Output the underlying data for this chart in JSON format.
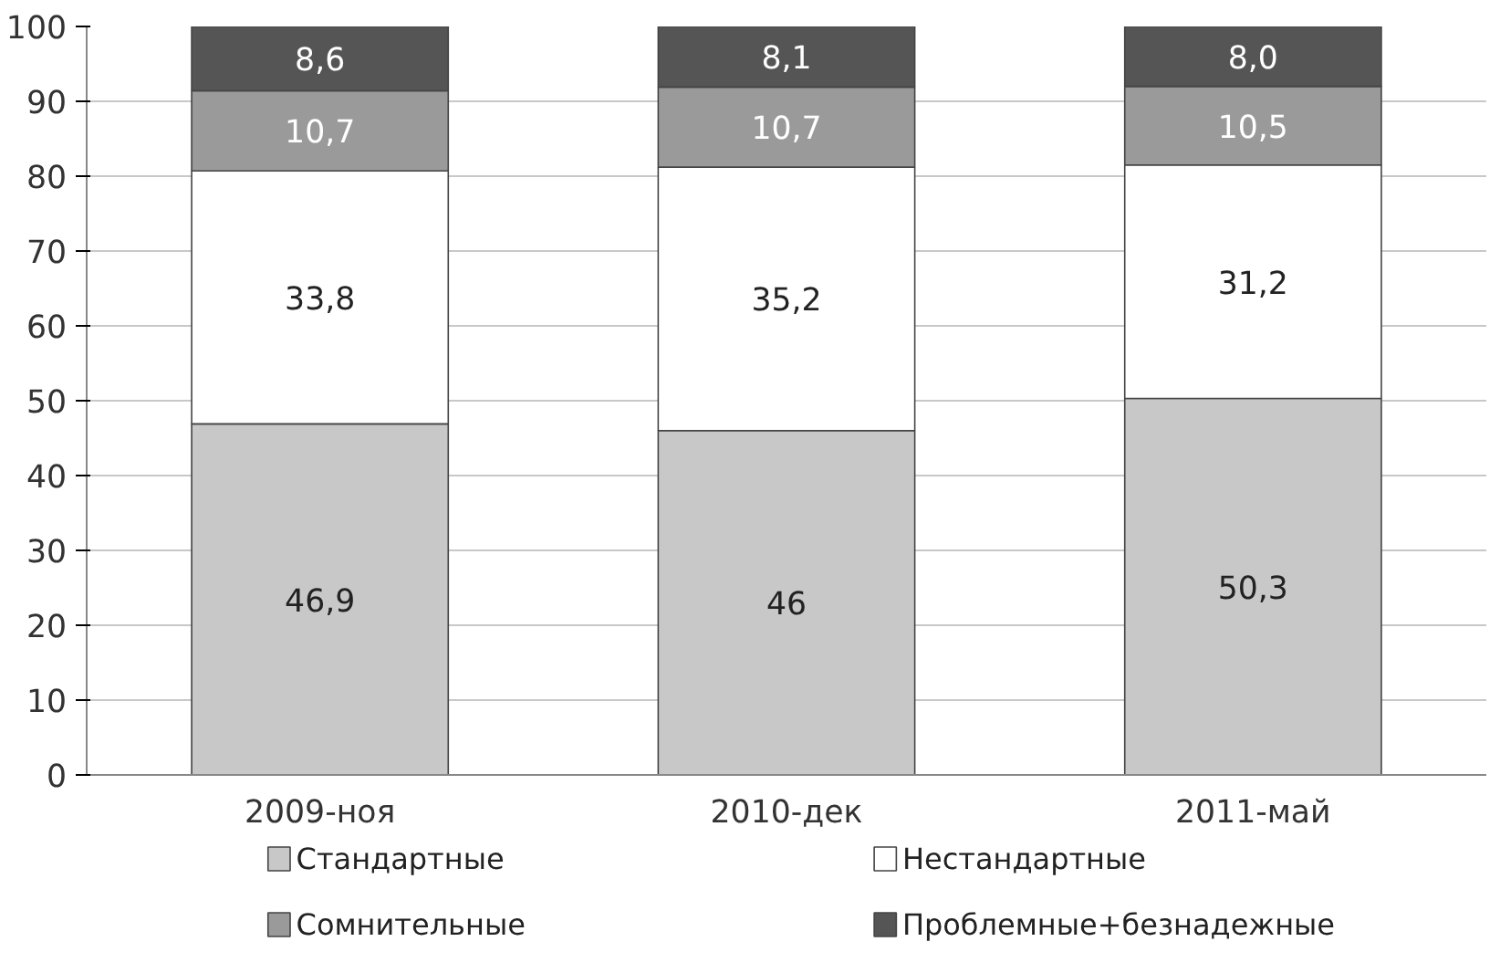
{
  "chart_data": {
    "type": "bar",
    "stacked": true,
    "categories": [
      "2009-ноя",
      "2010-дек",
      "2011-май"
    ],
    "series": [
      {
        "name": "Стандартные",
        "color": "#c8c8c8",
        "values": [
          46.9,
          46,
          50.3
        ],
        "value_labels": [
          "46,9",
          "46",
          "50,3"
        ]
      },
      {
        "name": "Нестандартные",
        "color": "#ffffff",
        "values": [
          33.8,
          35.2,
          31.2
        ],
        "value_labels": [
          "33,8",
          "35,2",
          "31,2"
        ]
      },
      {
        "name": "Сомнительные",
        "color": "#9a9a9a",
        "values": [
          10.7,
          10.7,
          10.5
        ],
        "value_labels": [
          "10,7",
          "10,7",
          "10,5"
        ]
      },
      {
        "name": "Проблемные+безнадежные",
        "color": "#555555",
        "values": [
          8.6,
          8.1,
          8.0
        ],
        "value_labels": [
          "8,6",
          "8,1",
          "8,0"
        ]
      }
    ],
    "ylim": [
      0,
      100
    ],
    "yticks": [
      0,
      10,
      20,
      30,
      40,
      50,
      60,
      70,
      80,
      90,
      100
    ],
    "grid": "y",
    "legend": "bottom"
  }
}
